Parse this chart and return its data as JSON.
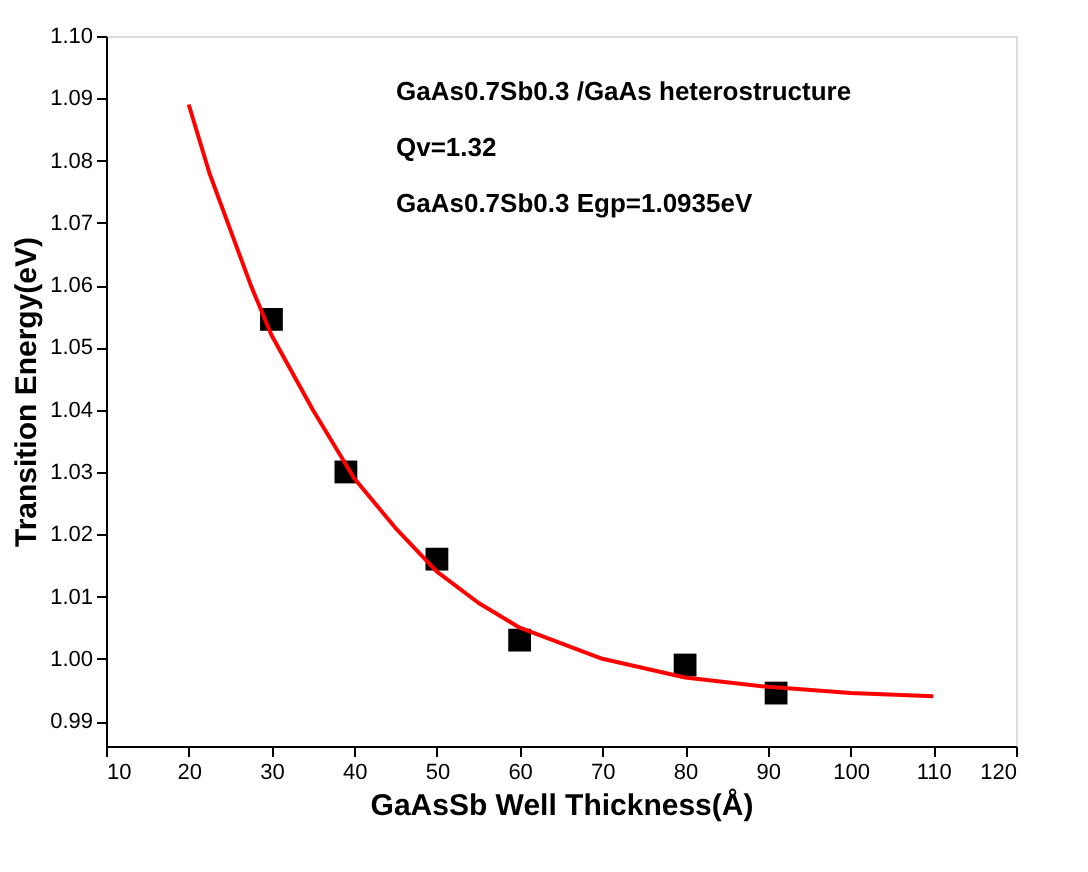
{
  "chart_data": {
    "type": "scatter",
    "xlabel": "GaAsSb Well Thickness(Å)",
    "ylabel": "Transition Energy(eV)",
    "annotations": [
      "GaAs0.7Sb0.3 /GaAs heterostructure",
      "Qv=1.32",
      "GaAs0.7Sb0.3 Egp=1.0935eV"
    ],
    "xlim": [
      10,
      120
    ],
    "xticks": [
      10,
      20,
      30,
      40,
      50,
      60,
      70,
      80,
      90,
      100,
      110,
      120
    ],
    "ylim": [
      0.986,
      1.1
    ],
    "yticks": [
      {
        "value": 0.99,
        "label": "0.99"
      },
      {
        "value": 1.0,
        "label": "1.00"
      },
      {
        "value": 1.01,
        "label": "1.01"
      },
      {
        "value": 1.02,
        "label": "1.02"
      },
      {
        "value": 1.03,
        "label": "1.03"
      },
      {
        "value": 1.04,
        "label": "1.04"
      },
      {
        "value": 1.05,
        "label": "1.05"
      },
      {
        "value": 1.06,
        "label": "1.06"
      },
      {
        "value": 1.07,
        "label": "1.07"
      },
      {
        "value": 1.08,
        "label": "1.08"
      },
      {
        "value": 1.09,
        "label": "1.09"
      },
      {
        "value": 1.1,
        "label": "1.10"
      }
    ],
    "grid": false,
    "series": [
      {
        "marker": "square",
        "color": "#000000",
        "x": [
          30,
          39,
          50,
          60,
          80,
          91
        ],
        "values": [
          1.0545,
          1.03,
          1.016,
          1.003,
          0.999,
          0.9945
        ]
      },
      {
        "type": "line",
        "line_style": "solid",
        "color": "#ff0000",
        "x": [
          20,
          22.5,
          25,
          27.5,
          30,
          35,
          40,
          45,
          50,
          55,
          60,
          70,
          80,
          90,
          100,
          110
        ],
        "values": [
          1.089,
          1.078,
          1.069,
          1.06,
          1.052,
          1.04,
          1.029,
          1.021,
          1.014,
          1.009,
          1.005,
          1.0,
          0.997,
          0.9955,
          0.9945,
          0.994
        ]
      }
    ]
  }
}
